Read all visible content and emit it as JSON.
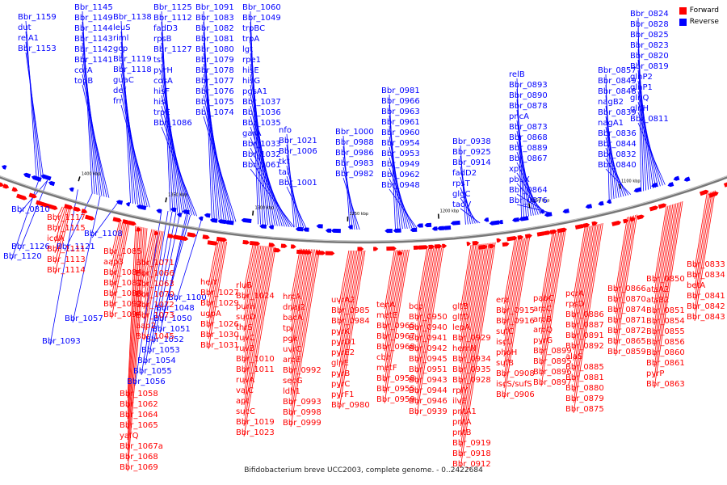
{
  "caption": "Bifidobacterium breve UCC2003, complete genome. - 0..2422684",
  "legend": {
    "forward_label": "Forward",
    "reverse_label": "Reverse",
    "forward_color": "#ff0000",
    "reverse_color": "#0000ff"
  },
  "scale_ticks": [
    "1400 kbp",
    "1350 kbp",
    "1300 kbp",
    "1250 kbp",
    "1200 kbp",
    "1150 kbp",
    "1100 kbp"
  ],
  "reverse_genes": [
    "Bbr_1159",
    "dut",
    "relA1",
    "Bbr_1153",
    "Bbr_1145",
    "Bbr_1149",
    "Bbr_1144",
    "Bbr_1143",
    "Bbr_1142",
    "Bbr_1141",
    "corA",
    "topB",
    "Bbr_1138",
    "leuS",
    "riml",
    "gcp",
    "Bbr_1119",
    "Bbr_1118",
    "guaC",
    "def",
    "frr",
    "Bbr_1125",
    "Bbr_1112",
    "fadD3",
    "rpsB",
    "Bbr_1127",
    "tsf",
    "pyrH",
    "cdsA",
    "hisF",
    "hisI",
    "trpE",
    "Bbr_1086",
    "Bbr_1091",
    "Bbr_1083",
    "Bbr_1082",
    "Bbr_1081",
    "Bbr_1080",
    "Bbr_1079",
    "Bbr_1078",
    "Bbr_1077",
    "Bbr_1076",
    "Bbr_1075",
    "Bbr_1074",
    "Bbr_1060",
    "Bbr_1049",
    "trpBC",
    "trpA",
    "lgt",
    "rpe1",
    "hisE",
    "hisG",
    "pgsA1",
    "Bbr_1037",
    "Bbr_1036",
    "Bbr_1035",
    "garA",
    "Bbr_1033",
    "Bbr_1032",
    "Bbr_1061",
    "nfo",
    "Bbr_1021",
    "Bbr_1006",
    "tkt",
    "tal",
    "Bbr_1001",
    "Bbr_1000",
    "Bbr_0988",
    "Bbr_0986",
    "Bbr_0983",
    "Bbr_0982",
    "Bbr_0981",
    "Bbr_0966",
    "Bbr_0963",
    "Bbr_0961",
    "Bbr_0960",
    "Bbr_0954",
    "Bbr_0953",
    "Bbr_0949",
    "Bbr_0962",
    "Bbr_0948",
    "Bbr_0938",
    "Bbr_0925",
    "Bbr_0914",
    "fadD2",
    "rpsT",
    "glgC",
    "tadV",
    "relB",
    "Bbr_0893",
    "Bbr_0890",
    "Bbr_0878",
    "pncA",
    "Bbr_0873",
    "Bbr_0868",
    "Bbr_0889",
    "Bbr_0867",
    "xpt",
    "pbuX",
    "Bbr_0864",
    "Bbr_0876",
    "Bbr_0857",
    "Bbr_0849",
    "Bbr_0848",
    "nagB2",
    "Bbr_0839",
    "nagA1",
    "Bbr_0836",
    "Bbr_0844",
    "Bbr_0832",
    "Bbr_0840",
    "Bbr_0824",
    "Bbr_0828",
    "Bbr_0825",
    "Bbr_0823",
    "Bbr_0820",
    "Bbr_0819",
    "glnP2",
    "glnP1",
    "glnQ",
    "glnH",
    "Bbr_0811",
    "Bbr_0810",
    "Bbr_1126",
    "Bbr_1120",
    "Bbr_1121",
    "Bbr_1108",
    "Bbr_1100",
    "Bbr_1048",
    "Bbr_1050",
    "Bbr_1051",
    "Bbr_1052",
    "Bbr_1053",
    "Bbr_1054",
    "Bbr_1055",
    "Bbr_1056",
    "Bbr_1057",
    "Bbr_1093",
    "Bbr_1095"
  ],
  "forward_genes": [
    "Bbr_1117",
    "Bbr_1115",
    "icdA",
    "Bbr_1111",
    "Bbr_1113",
    "Bbr_1114",
    "Bbr_1085",
    "aap3",
    "Bbr_1084",
    "Bbr_1087",
    "Bbr_1088",
    "Bbr_1092",
    "Bbr_1094",
    "Bbr_1071",
    "Bbr_1066",
    "Bbr_1063",
    "Bbr_1070",
    "Bbr_1072",
    "Bbr_1073",
    "aap2",
    "Bbr_1045",
    "Bbr_1058",
    "Bbr_1062",
    "Bbr_1064",
    "Bbr_1065",
    "yafQ",
    "Bbr_1067a",
    "Bbr_1068",
    "Bbr_1069",
    "helY",
    "Bbr_1027",
    "Bbr_1029",
    "ugpA",
    "Bbr_1026",
    "Bbr_1030",
    "Bbr_1031",
    "rluB",
    "Bbr_1024",
    "purH",
    "sucD",
    "thrS",
    "ruvC",
    "ruvB",
    "Bbr_1010",
    "Bbr_1011",
    "ruvA",
    "vajC",
    "apt",
    "sucC",
    "Bbr_1019",
    "Bbr_1023",
    "hrcA",
    "dnaJ2",
    "bacA",
    "tpi",
    "pgk",
    "uvrC",
    "aroE",
    "Bbr_0992",
    "secG",
    "ldh1",
    "Bbr_0993",
    "Bbr_0998",
    "Bbr_0999",
    "uvrA2",
    "Bbr_0985",
    "Bbr_0984",
    "pyrK",
    "pyrD1",
    "pyrE2",
    "glnE",
    "pyrB",
    "pyrC",
    "pyrF1",
    "Bbr_0980",
    "tenA",
    "metE",
    "Bbr_0965",
    "Bbr_0967",
    "Bbr_0968",
    "cbh",
    "metF",
    "Bbr_0958",
    "Bbr_0955",
    "Bbr_0959",
    "bcp",
    "Bbr_0950",
    "Bbr_0940",
    "Bbr_0941",
    "Bbr_0942",
    "Bbr_0945",
    "Bbr_0951",
    "Bbr_0943",
    "Bbr_0944",
    "Bbr_0946",
    "Bbr_0939",
    "gltB",
    "gltD",
    "lepA",
    "Bbr_0929",
    "hemN",
    "Bbr_0934",
    "Bbr_0935",
    "Bbr_0928",
    "rplY",
    "ilvE",
    "pntA1",
    "pntA",
    "pntB",
    "Bbr_0919",
    "Bbr_0918",
    "Bbr_0912",
    "era",
    "Bbr_0915",
    "Bbr_0916",
    "sufC",
    "iscU",
    "phoH",
    "sufB",
    "Bbr_0908",
    "iscS/sufS",
    "Bbr_0906",
    "pabC",
    "aroC",
    "aroB",
    "aroQ",
    "pyrG",
    "Bbr_0899",
    "Bbr_0895",
    "Bbr_0896",
    "Bbr_0897",
    "pcrA",
    "rpsD",
    "Bbr_0886",
    "Bbr_0887",
    "Bbr_0891",
    "Bbr_0892",
    "alaS",
    "Bbr_0885",
    "Bbr_0881",
    "Bbr_0880",
    "Bbr_0879",
    "Bbr_0875",
    "Bbr_0866",
    "Bbr_0870",
    "Bbr_0874",
    "Bbr_0871",
    "Bbr_0872",
    "Bbr_0865",
    "Bbr_0859",
    "Bbr_0850",
    "atsA2",
    "atsB2",
    "Bbr_0851",
    "Bbr_0854",
    "Bbr_0855",
    "Bbr_0856",
    "Bbr_0860",
    "Bbr_0861",
    "pyrP",
    "Bbr_0863",
    "Bbr_0833",
    "Bbr_0834",
    "betA",
    "Bbr_0841",
    "Bbr_0842",
    "Bbr_0843"
  ]
}
